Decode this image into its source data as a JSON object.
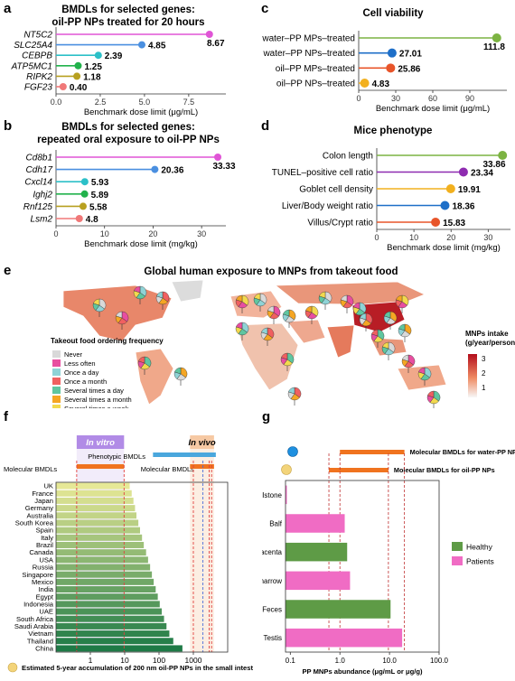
{
  "panel_labels": [
    "a",
    "b",
    "c",
    "d",
    "e",
    "f",
    "g"
  ],
  "chart_data": [
    {
      "panel": "a",
      "type": "lollipop",
      "title_lines": [
        "BMDLs for selected genes:",
        "oil-PP NPs treated for 20 hours"
      ],
      "xlabel": "Benchmark dose limit (μg/mL)",
      "xlim": [
        0,
        9.6
      ],
      "xticks": [
        0.0,
        2.5,
        5.0,
        7.5
      ],
      "xtick_labels": [
        "0.0",
        "2.5",
        "5.0",
        "7.5"
      ],
      "categories": [
        "NT5C2",
        "SLC25A4",
        "CEBPB",
        "ATP5MC1",
        "RIPK2",
        "FGF23"
      ],
      "values": [
        8.67,
        4.85,
        2.39,
        1.25,
        1.18,
        0.4
      ],
      "value_labels": [
        "8.67",
        "4.85",
        "2.39",
        "1.25",
        "1.18",
        "0.40"
      ],
      "colors": [
        "#e055d6",
        "#4a8fe0",
        "#2cc0c8",
        "#22b24c",
        "#b8a020",
        "#f07878"
      ],
      "italic_categories": true
    },
    {
      "panel": "b",
      "type": "lollipop",
      "title_lines": [
        "BMDLs for selected genes:",
        "repeated oral exposure to oil-PP NPs"
      ],
      "xlabel": "Benchmark dose limit (mg/kg)",
      "xlim": [
        0,
        35
      ],
      "xticks": [
        0,
        10,
        20,
        30
      ],
      "xtick_labels": [
        "0",
        "10",
        "20",
        "30"
      ],
      "categories": [
        "Cd8b1",
        "Cdh17",
        "Cxcl14",
        "Ighj2",
        "Rnf125",
        "Lsm2"
      ],
      "values": [
        33.33,
        20.36,
        5.93,
        5.89,
        5.58,
        4.8
      ],
      "value_labels": [
        "33.33",
        "20.36",
        "5.93",
        "5.89",
        "5.58",
        "4.8"
      ],
      "colors": [
        "#e055d6",
        "#4a8fe0",
        "#2cc0c8",
        "#22b24c",
        "#b8a020",
        "#f07878"
      ],
      "italic_categories": true
    },
    {
      "panel": "c",
      "type": "lollipop",
      "title_lines": [
        "Cell viability"
      ],
      "xlabel": "Benchmark dose limit (μg/mL)",
      "xlim": [
        0,
        120
      ],
      "xticks": [
        0,
        30,
        60,
        90
      ],
      "xtick_labels": [
        "0",
        "30",
        "60",
        "90"
      ],
      "categories": [
        "water–PP MPs–treated",
        "water–PP NPs–treated",
        "oil–PP MPs–treated",
        "oil–PP NPs–treated"
      ],
      "values": [
        111.8,
        27.01,
        25.86,
        4.83
      ],
      "value_labels": [
        "111.8",
        "27.01",
        "25.86",
        "4.83"
      ],
      "colors": [
        "#7cb342",
        "#1e6fc8",
        "#e8552a",
        "#f2b01e"
      ],
      "italic_categories": false
    },
    {
      "panel": "d",
      "type": "lollipop",
      "title_lines": [
        "Mice phenotype"
      ],
      "xlabel": "Benchmark dose limit (mg/kg)",
      "xlim": [
        0,
        36
      ],
      "xticks": [
        0,
        10,
        20,
        30
      ],
      "xtick_labels": [
        "0",
        "10",
        "20",
        "30"
      ],
      "categories": [
        "Colon length",
        "TUNEL–positive cell ratio",
        "Goblet cell density",
        "Liver/Body weight ratio",
        "Villus/Crypt ratio"
      ],
      "values": [
        33.86,
        23.34,
        19.91,
        18.36,
        15.83
      ],
      "value_labels": [
        "33.86",
        "23.34",
        "19.91",
        "18.36",
        "15.83"
      ],
      "colors": [
        "#7cb342",
        "#8e2bb0",
        "#f2b01e",
        "#1e6fc8",
        "#e8552a"
      ],
      "italic_categories": false
    },
    {
      "panel": "f",
      "type": "bar",
      "orientation": "horizontal",
      "xscale": "log",
      "xlim": [
        0.1,
        10000
      ],
      "xticks": [
        1,
        10,
        100,
        1000
      ],
      "xtick_labels": [
        "1",
        "10",
        "100",
        "1000"
      ],
      "categories": [
        "UK",
        "France",
        "Japan",
        "Germany",
        "Australia",
        "South Korea",
        "Spain",
        "Italy",
        "Brazil",
        "Canada",
        "USA",
        "Russia",
        "Singapore",
        "Mexico",
        "India",
        "Egypt",
        "Indonesia",
        "UAE",
        "South Africa",
        "Saudi Arabia",
        "Vietnam",
        "Thailand",
        "China"
      ],
      "values": [
        14,
        16,
        18,
        20,
        22,
        25,
        28,
        32,
        36,
        42,
        48,
        55,
        62,
        70,
        80,
        92,
        105,
        120,
        140,
        165,
        200,
        260,
        480
      ],
      "band_labels": {
        "in_vitro": "In vitro",
        "in_vivo": "In vivo",
        "phenotypic": "Phenotypic BMDLs",
        "molecular_left": "Molecular BMDLs",
        "molecular_mid": "Molecular BMDLs"
      },
      "xlabel": "Estimated 5-year accumulation of 200 nm oil-PP NPs in the small intestine (μg/g)",
      "in_vitro_range": [
        0.4,
        9.6
      ],
      "in_vivo_range": [
        800,
        4000
      ],
      "in_vivo_lines": [
        1000,
        1900,
        2900,
        3400
      ]
    },
    {
      "panel": "g",
      "type": "bar",
      "orientation": "horizontal",
      "xscale": "log",
      "xlim": [
        0.08,
        100
      ],
      "xticks": [
        0.1,
        1.0,
        10.0,
        100.0
      ],
      "xtick_labels": [
        "0.1",
        "1.0",
        "10.0",
        "100.0"
      ],
      "categories": [
        "Gallstone",
        "Balf",
        "Placenta",
        "Bone marrow",
        "Feces",
        "Testis"
      ],
      "values": [
        0.085,
        1.25,
        1.4,
        1.6,
        10.5,
        18
      ],
      "groups": [
        "Patients",
        "Patients",
        "Healthy",
        "Patients",
        "Healthy",
        "Patients"
      ],
      "legend": [
        "Healthy",
        "Patients"
      ],
      "legend_colors": [
        "#5e9b46",
        "#f06cc4"
      ],
      "xlabel": "PP MNPs abundance (μg/mL or μg/g)",
      "bmdl_water_label": "Molecular BMDLs for water-PP NPs",
      "bmdl_oil_label": "Molecular BMDLs for oil-PP NPs",
      "bmdl_water_range": [
        1.0,
        20
      ],
      "bmdl_oil_range": [
        0.6,
        9.5
      ]
    }
  ],
  "map": {
    "title": "Global human exposure to MNPs from takeout food",
    "legend_title": "Takeout food ordering frequency",
    "legend_items": [
      {
        "label": "Never",
        "color": "#d9d9d9"
      },
      {
        "label": "Less often",
        "color": "#e84ea0"
      },
      {
        "label": "Once a day",
        "color": "#8fd3d6"
      },
      {
        "label": "Once a month",
        "color": "#f06060"
      },
      {
        "label": "Several times a day",
        "color": "#5fc6a0"
      },
      {
        "label": "Several times a month",
        "color": "#f5a623"
      },
      {
        "label": "Several times a week",
        "color": "#f2d94e"
      }
    ],
    "colorbar_title_lines": [
      "MNPs intake",
      "(g/year/person)"
    ],
    "colorbar_ticks": [
      "3",
      "2",
      "1"
    ]
  }
}
